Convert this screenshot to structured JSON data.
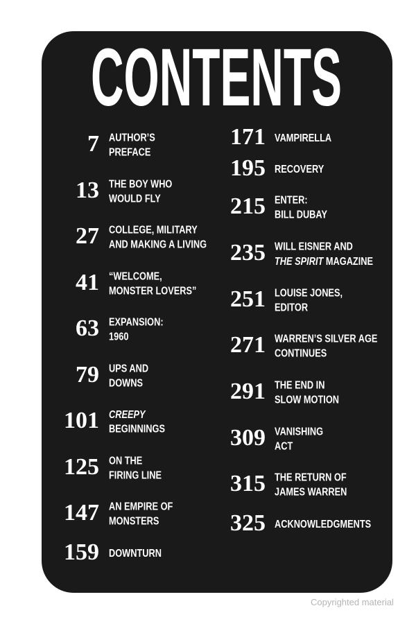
{
  "heading": "CONTENTS",
  "contents": {
    "left": [
      {
        "page": 7,
        "title": [
          "AUTHOR’S",
          "PREFACE"
        ]
      },
      {
        "page": 13,
        "title": [
          "THE BOY WHO",
          "WOULD FLY"
        ]
      },
      {
        "page": 27,
        "title": [
          "COLLEGE, MILITARY",
          "AND MAKING A LIVING"
        ]
      },
      {
        "page": 41,
        "title": [
          "“WELCOME,",
          "MONSTER LOVERS”"
        ]
      },
      {
        "page": 63,
        "title": [
          "EXPANSION:",
          "1960"
        ]
      },
      {
        "page": 79,
        "title": [
          "UPS AND",
          "DOWNS"
        ]
      },
      {
        "page": 101,
        "title": [
          [
            {
              "text": "CREEPY",
              "italic": true
            }
          ],
          "BEGINNINGS"
        ]
      },
      {
        "page": 125,
        "title": [
          "ON THE",
          "FIRING LINE"
        ]
      },
      {
        "page": 147,
        "title": [
          "AN EMPIRE OF",
          "MONSTERS"
        ]
      },
      {
        "page": 159,
        "title": [
          "DOWNTURN"
        ]
      }
    ],
    "right": [
      {
        "page": 171,
        "title": [
          "VAMPIRELLA"
        ]
      },
      {
        "page": 195,
        "title": [
          "RECOVERY"
        ]
      },
      {
        "page": 215,
        "title": [
          "ENTER:",
          "BILL DUBAY"
        ]
      },
      {
        "page": 235,
        "title": [
          "WILL EISNER AND",
          [
            {
              "text": "THE SPIRIT",
              "italic": true
            },
            {
              "text": " MAGAZINE",
              "italic": false
            }
          ]
        ]
      },
      {
        "page": 251,
        "title": [
          "LOUISE JONES,",
          "EDITOR"
        ]
      },
      {
        "page": 271,
        "title": [
          "WARREN’S SILVER AGE",
          "CONTINUES"
        ]
      },
      {
        "page": 291,
        "title": [
          "THE END IN",
          "SLOW MOTION"
        ]
      },
      {
        "page": 309,
        "title": [
          "VANISHING",
          "ACT"
        ]
      },
      {
        "page": 315,
        "title": [
          "THE RETURN OF",
          "JAMES WARREN"
        ]
      },
      {
        "page": 325,
        "title": [
          "ACKNOWLEDGMENTS"
        ]
      }
    ]
  },
  "watermark": "Copyrighted material"
}
